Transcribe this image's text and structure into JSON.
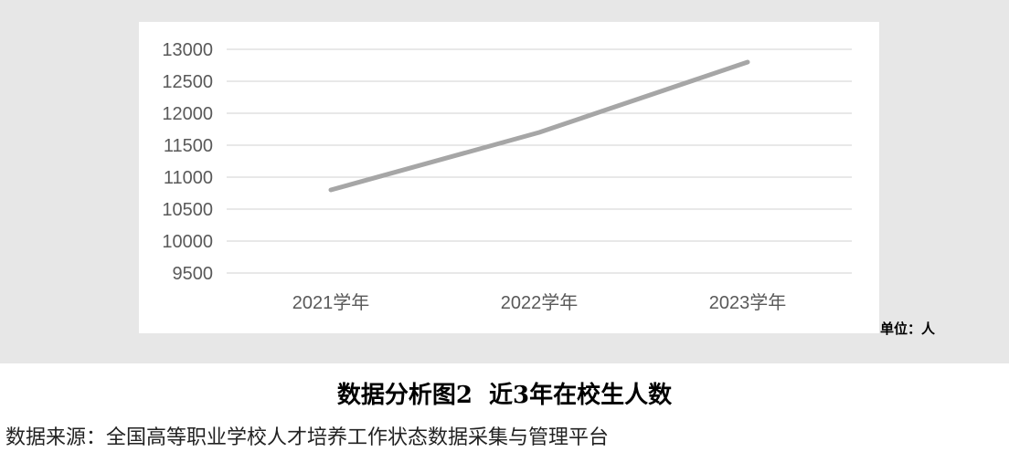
{
  "unit_label": "单位：人",
  "title": "数据分析图2  近3年在校生人数",
  "source": "数据来源：全国高等职业学校人才培养工作状态数据采集与管理平台",
  "colors": {
    "line": "#a6a6a6",
    "gridline": "#d9d9d9",
    "tick_text": "#595959",
    "background_band": "#e7e7e7"
  },
  "chart_data": {
    "type": "line",
    "categories": [
      "2021学年",
      "2022学年",
      "2023学年"
    ],
    "series": [
      {
        "values": [
          10800,
          11700,
          12800
        ]
      }
    ],
    "yticks": [
      9500,
      10000,
      10500,
      11000,
      11500,
      12000,
      12500,
      13000
    ],
    "ylim": [
      9500,
      13000
    ],
    "grid": true,
    "legend": "none",
    "title": "",
    "xlabel": "",
    "ylabel": ""
  }
}
